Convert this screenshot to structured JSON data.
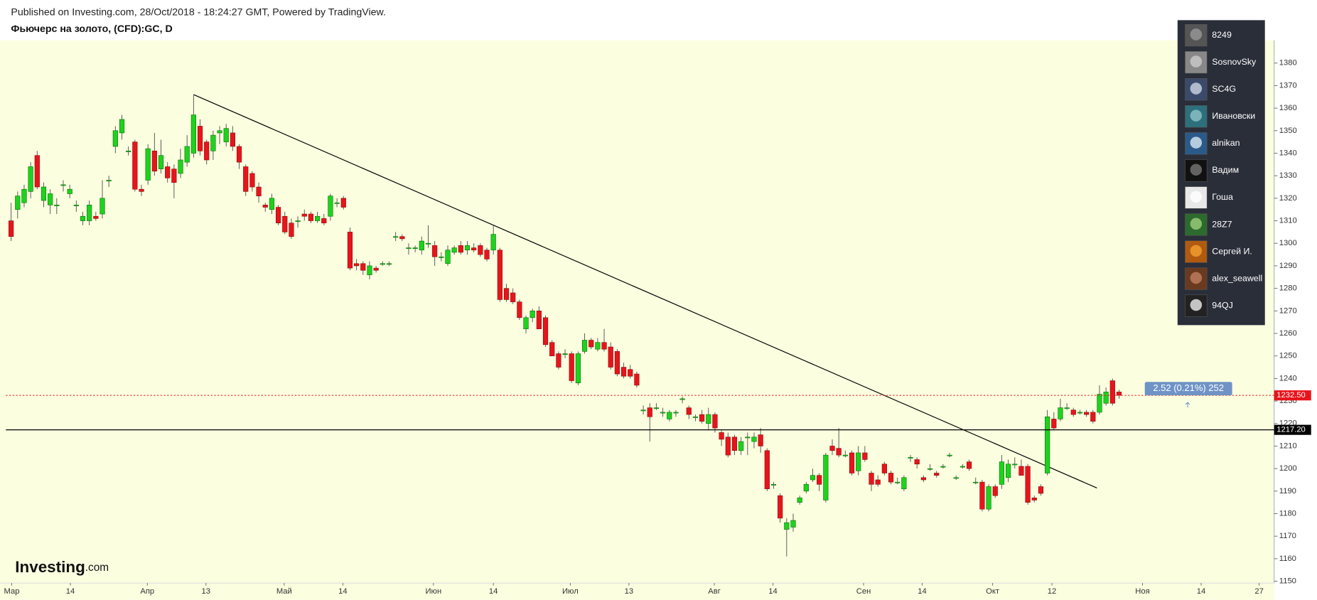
{
  "header": {
    "published": "Published on Investing.com, 28/Oct/2018 - 18:24:27 GMT, Powered by TradingView.",
    "symbol": "Фьючерс на золото, (CFD):GC, D"
  },
  "logo": {
    "main": "Investing",
    "suffix": ".com"
  },
  "sidebar": {
    "users": [
      "8249",
      "SosnovSky",
      "SC4G",
      "Ивановски",
      "alnikan",
      "Вадим",
      "Гоша",
      "28Z7",
      "Сергей И.",
      "alex_seawell",
      "94QJ"
    ]
  },
  "chart_data": {
    "type": "candlestick",
    "up_color": "#1ed21e",
    "down_color": "#e8141c",
    "grid": false,
    "xlim": [
      -0.8,
      193.8
    ],
    "ylim": [
      1149.2,
      1390.1
    ],
    "xticks": [
      {
        "value": 0.1,
        "label": "Мар"
      },
      {
        "value": 9.1,
        "label": "14"
      },
      {
        "value": 20.9,
        "label": "Апр"
      },
      {
        "value": 29.9,
        "label": "13"
      },
      {
        "value": 41.9,
        "label": "Май"
      },
      {
        "value": 50.9,
        "label": "14"
      },
      {
        "value": 64.8,
        "label": "Июн"
      },
      {
        "value": 74.0,
        "label": "14"
      },
      {
        "value": 85.8,
        "label": "Июл"
      },
      {
        "value": 94.8,
        "label": "13"
      },
      {
        "value": 107.9,
        "label": "Авг"
      },
      {
        "value": 116.9,
        "label": "14"
      },
      {
        "value": 130.8,
        "label": "Сен"
      },
      {
        "value": 139.8,
        "label": "14"
      },
      {
        "value": 150.6,
        "label": "Окт"
      },
      {
        "value": 159.7,
        "label": "12"
      },
      {
        "value": 173.6,
        "label": "Ноя"
      },
      {
        "value": 182.6,
        "label": "14"
      },
      {
        "value": 191.5,
        "label": "27"
      }
    ],
    "yticks": [
      1150,
      1160,
      1170,
      1180,
      1190,
      1200,
      1210,
      1220,
      1230,
      1240,
      1250,
      1260,
      1270,
      1280,
      1290,
      1300,
      1310,
      1320,
      1330,
      1340,
      1350,
      1360,
      1370,
      1380
    ],
    "hlines": [
      {
        "value": 1232.5,
        "label": "1232.50",
        "color": "#e8141c",
        "style": "dotted"
      },
      {
        "value": 1217.2,
        "label": "1217.20",
        "color": "#000000",
        "style": "solid"
      }
    ],
    "annotation": {
      "text": "2.52 (0.21%) 252",
      "color": "#6f93c6"
    },
    "trendline": {
      "x": [
        28,
        166.6
      ],
      "y": [
        1366,
        1191.4
      ],
      "color": "#000000"
    },
    "ohlc": [
      [
        1310,
        1318,
        1301,
        1303
      ],
      [
        1315,
        1323,
        1311,
        1321
      ],
      [
        1318,
        1326,
        1316,
        1324
      ],
      [
        1323,
        1336,
        1320,
        1334
      ],
      [
        1339,
        1341,
        1324,
        1325
      ],
      [
        1319,
        1327,
        1316,
        1325
      ],
      [
        1317,
        1324,
        1313,
        1322
      ],
      [
        1317,
        1320,
        1313,
        1317
      ],
      [
        1326,
        1328,
        1323,
        1326
      ],
      [
        1322,
        1326,
        1320,
        1324
      ],
      [
        1317,
        1319,
        1314,
        1317
      ],
      [
        1310,
        1314,
        1308,
        1312
      ],
      [
        1310,
        1319,
        1308,
        1317
      ],
      [
        1312,
        1314,
        1310,
        1311
      ],
      [
        1313,
        1328,
        1311,
        1320
      ],
      [
        1328,
        1330,
        1325,
        1328
      ],
      [
        1343,
        1352,
        1340,
        1350
      ],
      [
        1349,
        1357,
        1346,
        1355
      ],
      [
        1341,
        1343,
        1339,
        1341
      ],
      [
        1345,
        1346,
        1323,
        1324
      ],
      [
        1324,
        1326,
        1321,
        1323
      ],
      [
        1328,
        1344,
        1326,
        1342
      ],
      [
        1341,
        1349,
        1330,
        1332
      ],
      [
        1333,
        1346,
        1331,
        1339
      ],
      [
        1334,
        1336,
        1327,
        1329
      ],
      [
        1333,
        1335,
        1320,
        1327
      ],
      [
        1331,
        1342,
        1329,
        1337
      ],
      [
        1336,
        1348,
        1334,
        1343
      ],
      [
        1340,
        1366,
        1338,
        1357
      ],
      [
        1352,
        1355,
        1339,
        1341
      ],
      [
        1345,
        1346,
        1335,
        1337
      ],
      [
        1341,
        1350,
        1337,
        1348
      ],
      [
        1349,
        1352,
        1344,
        1350
      ],
      [
        1345,
        1353,
        1343,
        1351
      ],
      [
        1349,
        1352,
        1341,
        1343
      ],
      [
        1343,
        1344,
        1333,
        1336
      ],
      [
        1334,
        1335,
        1321,
        1323
      ],
      [
        1331,
        1332,
        1323,
        1325
      ],
      [
        1325,
        1327,
        1318,
        1321
      ],
      [
        1317,
        1318,
        1314,
        1316
      ],
      [
        1315,
        1322,
        1313,
        1320
      ],
      [
        1316,
        1317,
        1308,
        1309
      ],
      [
        1312,
        1314,
        1304,
        1305
      ],
      [
        1309,
        1311,
        1302,
        1303
      ],
      [
        1310,
        1312,
        1307,
        1310
      ],
      [
        1313,
        1315,
        1310,
        1312
      ],
      [
        1313,
        1314,
        1309,
        1310
      ],
      [
        1310,
        1314,
        1309,
        1312
      ],
      [
        1311,
        1313,
        1308,
        1309
      ],
      [
        1312,
        1322,
        1310,
        1321
      ],
      [
        1318,
        1320,
        1316,
        1318
      ],
      [
        1320,
        1321,
        1315,
        1316
      ],
      [
        1305,
        1307,
        1288,
        1289
      ],
      [
        1291,
        1293,
        1288,
        1290
      ],
      [
        1291,
        1292,
        1286,
        1288
      ],
      [
        1286,
        1292,
        1284,
        1290
      ],
      [
        1289,
        1290,
        1287,
        1288
      ],
      [
        1291,
        1292,
        1290,
        1291
      ],
      [
        1291,
        1292,
        1290,
        1291
      ],
      [
        1303,
        1305,
        1301,
        1303
      ],
      [
        1303,
        1304,
        1301,
        1302
      ],
      [
        1298,
        1300,
        1295,
        1298
      ],
      [
        1298,
        1299,
        1296,
        1298
      ],
      [
        1297,
        1303,
        1295,
        1301
      ],
      [
        1300,
        1308,
        1298,
        1300
      ],
      [
        1299,
        1301,
        1290,
        1294
      ],
      [
        1294,
        1296,
        1292,
        1294
      ],
      [
        1291,
        1299,
        1290,
        1297
      ],
      [
        1296,
        1299,
        1295,
        1298
      ],
      [
        1299,
        1301,
        1295,
        1296
      ],
      [
        1297,
        1301,
        1295,
        1299
      ],
      [
        1298,
        1300,
        1296,
        1297
      ],
      [
        1299,
        1300,
        1294,
        1295
      ],
      [
        1297,
        1298,
        1292,
        1293
      ],
      [
        1297,
        1308,
        1295,
        1304
      ],
      [
        1297,
        1298,
        1274,
        1275
      ],
      [
        1280,
        1282,
        1274,
        1275
      ],
      [
        1278,
        1280,
        1273,
        1274
      ],
      [
        1274,
        1275,
        1266,
        1267
      ],
      [
        1262,
        1268,
        1260,
        1267
      ],
      [
        1267,
        1271,
        1265,
        1270
      ],
      [
        1270,
        1272,
        1262,
        1262
      ],
      [
        1267,
        1268,
        1254,
        1255
      ],
      [
        1256,
        1257,
        1250,
        1250
      ],
      [
        1251,
        1252,
        1244,
        1245
      ],
      [
        1251,
        1253,
        1249,
        1251
      ],
      [
        1251,
        1252,
        1238,
        1239
      ],
      [
        1238,
        1252,
        1237,
        1251
      ],
      [
        1252,
        1260,
        1251,
        1257
      ],
      [
        1257,
        1258,
        1253,
        1254
      ],
      [
        1253,
        1258,
        1252,
        1256
      ],
      [
        1256,
        1262,
        1252,
        1253
      ],
      [
        1254,
        1256,
        1244,
        1245
      ],
      [
        1252,
        1253,
        1241,
        1242
      ],
      [
        1245,
        1247,
        1240,
        1241
      ],
      [
        1244,
        1246,
        1240,
        1241
      ],
      [
        1242,
        1243,
        1236,
        1237
      ],
      [
        1226,
        1228,
        1224,
        1226
      ],
      [
        1227,
        1229,
        1212,
        1223
      ],
      [
        1227,
        1229,
        1226,
        1227
      ],
      [
        1225,
        1227,
        1223,
        1225
      ],
      [
        1222,
        1226,
        1221,
        1225
      ],
      [
        1225,
        1226,
        1223,
        1225
      ],
      [
        1231,
        1232,
        1229,
        1231
      ],
      [
        1227,
        1228,
        1222,
        1224
      ],
      [
        1223,
        1224,
        1221,
        1223
      ],
      [
        1224,
        1226,
        1220,
        1221
      ],
      [
        1220,
        1227,
        1217,
        1224
      ],
      [
        1224,
        1225,
        1216,
        1218
      ],
      [
        1216,
        1217,
        1210,
        1213
      ],
      [
        1214,
        1216,
        1205,
        1206
      ],
      [
        1214,
        1215,
        1206,
        1208
      ],
      [
        1208,
        1214,
        1206,
        1212
      ],
      [
        1214,
        1216,
        1206,
        1214
      ],
      [
        1212,
        1216,
        1209,
        1214
      ],
      [
        1215,
        1218,
        1207,
        1210
      ],
      [
        1208,
        1209,
        1190,
        1191
      ],
      [
        1193,
        1194,
        1191,
        1193
      ],
      [
        1188,
        1189,
        1176,
        1178
      ],
      [
        1173,
        1178,
        1161,
        1176
      ],
      [
        1174,
        1180,
        1172,
        1177
      ],
      [
        1185,
        1188,
        1184,
        1187
      ],
      [
        1190,
        1194,
        1189,
        1193
      ],
      [
        1195,
        1200,
        1194,
        1197
      ],
      [
        1197,
        1198,
        1190,
        1193
      ],
      [
        1186,
        1207,
        1185,
        1206
      ],
      [
        1210,
        1213,
        1206,
        1208
      ],
      [
        1209,
        1218,
        1205,
        1206
      ],
      [
        1206,
        1208,
        1205,
        1206
      ],
      [
        1207,
        1208,
        1197,
        1198
      ],
      [
        1199,
        1210,
        1197,
        1207
      ],
      [
        1207,
        1210,
        1203,
        1204
      ],
      [
        1198,
        1199,
        1190,
        1193
      ],
      [
        1195,
        1197,
        1192,
        1193
      ],
      [
        1202,
        1203,
        1197,
        1198
      ],
      [
        1198,
        1199,
        1193,
        1194
      ],
      [
        1194,
        1196,
        1193,
        1194
      ],
      [
        1191,
        1197,
        1190,
        1196
      ],
      [
        1205,
        1206,
        1203,
        1205
      ],
      [
        1204,
        1205,
        1200,
        1202
      ],
      [
        1196,
        1197,
        1194,
        1195
      ],
      [
        1200,
        1202,
        1199,
        1200
      ],
      [
        1198,
        1199,
        1196,
        1197
      ],
      [
        1201,
        1202,
        1200,
        1201
      ],
      [
        1206,
        1207,
        1205,
        1206
      ],
      [
        1196,
        1197,
        1195,
        1196
      ],
      [
        1201,
        1202,
        1200,
        1201
      ],
      [
        1203,
        1204,
        1199,
        1200
      ],
      [
        1194,
        1196,
        1193,
        1194
      ],
      [
        1194,
        1195,
        1181,
        1182
      ],
      [
        1182,
        1193,
        1181,
        1192
      ],
      [
        1192,
        1193,
        1187,
        1188
      ],
      [
        1193,
        1206,
        1191,
        1203
      ],
      [
        1196,
        1204,
        1194,
        1202
      ],
      [
        1202,
        1205,
        1200,
        1202
      ],
      [
        1201,
        1204,
        1197,
        1197
      ],
      [
        1201,
        1202,
        1184,
        1185
      ],
      [
        1187,
        1188,
        1185,
        1186
      ],
      [
        1192,
        1193,
        1188,
        1189
      ],
      [
        1198,
        1226,
        1197,
        1223
      ],
      [
        1222,
        1225,
        1217,
        1218
      ],
      [
        1222,
        1231,
        1221,
        1227
      ],
      [
        1227,
        1229,
        1226,
        1227
      ],
      [
        1226,
        1227,
        1223,
        1224
      ],
      [
        1225,
        1226,
        1224,
        1225
      ],
      [
        1225,
        1226,
        1223,
        1224
      ],
      [
        1225,
        1226,
        1220,
        1221
      ],
      [
        1225,
        1237,
        1224,
        1233
      ],
      [
        1229,
        1236,
        1228,
        1234
      ],
      [
        1239,
        1240,
        1228,
        1229
      ],
      [
        1234,
        1235,
        1231,
        1232.5
      ]
    ]
  }
}
